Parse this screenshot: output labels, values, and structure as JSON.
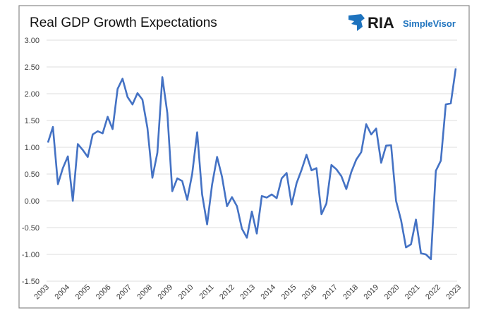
{
  "chart_data": {
    "type": "line",
    "title": "Real GDP Growth Expectations",
    "xlabel": "",
    "ylabel": "",
    "ylim": [
      -1.5,
      3.0
    ],
    "yticks": [
      "3.00",
      "2.50",
      "2.00",
      "1.50",
      "1.00",
      "0.50",
      "0.00",
      "-0.50",
      "-1.00",
      "-1.50"
    ],
    "xticks": [
      "2003",
      "2004",
      "2005",
      "2006",
      "2007",
      "2008",
      "2009",
      "2010",
      "2011",
      "2012",
      "2013",
      "2014",
      "2015",
      "2016",
      "2017",
      "2018",
      "2019",
      "2020",
      "2021",
      "2022",
      "2023"
    ],
    "grid": true,
    "legend": "none",
    "series": [
      {
        "color": "#4472C4",
        "values": [
          1.09,
          1.38,
          0.31,
          0.61,
          0.83,
          0.0,
          1.06,
          0.95,
          0.82,
          1.24,
          1.3,
          1.26,
          1.57,
          1.34,
          2.09,
          2.28,
          1.94,
          1.8,
          2.01,
          1.89,
          1.36,
          0.43,
          0.9,
          2.31,
          1.64,
          0.18,
          0.42,
          0.37,
          0.02,
          0.5,
          1.28,
          0.12,
          -0.44,
          0.3,
          0.82,
          0.45,
          -0.1,
          0.07,
          -0.1,
          -0.52,
          -0.69,
          -0.2,
          -0.61,
          0.09,
          0.06,
          0.12,
          0.05,
          0.42,
          0.52,
          -0.07,
          0.33,
          0.58,
          0.86,
          0.57,
          0.61,
          -0.25,
          -0.05,
          0.67,
          0.59,
          0.46,
          0.22,
          0.54,
          0.77,
          0.91,
          1.43,
          1.24,
          1.35,
          0.71,
          1.03,
          1.04,
          0.0,
          -0.36,
          -0.87,
          -0.81,
          -0.35,
          -0.98,
          -1.0,
          -1.09,
          0.56,
          0.75,
          1.8,
          1.82,
          2.47
        ]
      }
    ]
  },
  "logo": {
    "brand": "RIA",
    "product": "SimpleVisor",
    "brand_color": "#1a1a1a",
    "product_color": "#1e73be"
  }
}
